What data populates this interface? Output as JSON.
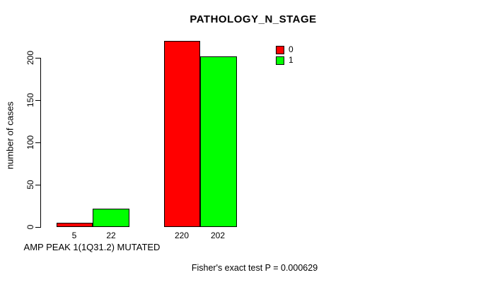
{
  "chart_data": {
    "type": "bar",
    "title": "PATHOLOGY_N_STAGE",
    "ylabel": "number of cases",
    "xlabel": "AMP PEAK 1(1Q31.2) MUTATED",
    "categories": [
      "AMP PEAK 1(1Q31.2) MUTATED",
      ""
    ],
    "series": [
      {
        "name": "0",
        "color": "#ff0000",
        "values": [
          5,
          220
        ]
      },
      {
        "name": "1",
        "color": "#00ff00",
        "values": [
          22,
          202
        ]
      }
    ],
    "yticks": [
      "0",
      "50",
      "100",
      "150",
      "200"
    ],
    "ylim": [
      0,
      225
    ],
    "grid": false,
    "bar_outline_color": "#000000",
    "legend_position": "top-right",
    "annotation": "Fisher's exact test P = 0.000629"
  }
}
